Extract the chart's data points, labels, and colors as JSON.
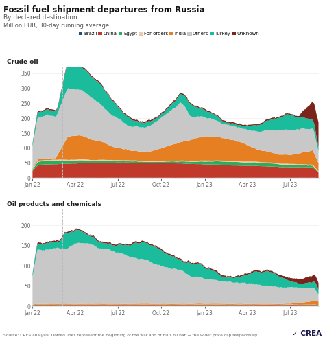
{
  "title": "Fossil fuel shipment departures from Russia",
  "subtitle": "By declared destination",
  "ylabel": "Million EUR, 30-day running average",
  "source": "Source: CREA analysis. Dotted lines represent the beginning of the war and of EU’s oil ban & the wider price cap respectively.",
  "legend_labels": [
    "Brazil",
    "China",
    "Egypt",
    "For orders",
    "India",
    "Others",
    "Turkey",
    "Unknown"
  ],
  "legend_colors": [
    "#1f4e79",
    "#c0392b",
    "#27ae60",
    "#f5cba7",
    "#e67e22",
    "#c8c8c8",
    "#1abc9c",
    "#7b241c"
  ],
  "ax1_title": "Crude oil",
  "ax2_title": "Oil products and chemicals",
  "background_color": "#ffffff",
  "crude_ylim": [
    0,
    370
  ],
  "products_ylim": [
    0,
    240
  ],
  "crude_yticks": [
    0,
    50,
    100,
    150,
    200,
    250,
    300,
    350
  ],
  "products_yticks": [
    0,
    50,
    100,
    150,
    200
  ],
  "n_points": 580
}
